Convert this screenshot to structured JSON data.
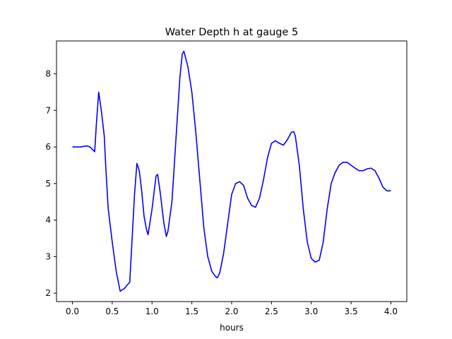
{
  "chart_data": {
    "type": "line",
    "title": "Water Depth h at gauge 5",
    "xlabel": "hours",
    "ylabel": "",
    "xlim": [
      -0.2,
      4.2
    ],
    "ylim": [
      1.77,
      8.9
    ],
    "xticks": [
      0.0,
      0.5,
      1.0,
      1.5,
      2.0,
      2.5,
      3.0,
      3.5,
      4.0
    ],
    "xtick_labels": [
      "0.0",
      "0.5",
      "1.0",
      "1.5",
      "2.0",
      "2.5",
      "3.0",
      "3.5",
      "4.0"
    ],
    "yticks": [
      2,
      3,
      4,
      5,
      6,
      7,
      8
    ],
    "ytick_labels": [
      "2",
      "3",
      "4",
      "5",
      "6",
      "7",
      "8"
    ],
    "grid": false,
    "series": [
      {
        "color": "#0000ff",
        "x": [
          0.0,
          0.1,
          0.18,
          0.22,
          0.28,
          0.3,
          0.33,
          0.36,
          0.4,
          0.42,
          0.45,
          0.5,
          0.55,
          0.6,
          0.63,
          0.65,
          0.68,
          0.72,
          0.75,
          0.78,
          0.81,
          0.84,
          0.87,
          0.9,
          0.93,
          0.95,
          1.0,
          1.05,
          1.07,
          1.1,
          1.15,
          1.18,
          1.2,
          1.25,
          1.3,
          1.35,
          1.38,
          1.4,
          1.42,
          1.45,
          1.5,
          1.55,
          1.6,
          1.65,
          1.7,
          1.75,
          1.8,
          1.82,
          1.85,
          1.9,
          1.95,
          2.0,
          2.05,
          2.1,
          2.15,
          2.2,
          2.25,
          2.3,
          2.35,
          2.4,
          2.45,
          2.5,
          2.55,
          2.6,
          2.65,
          2.7,
          2.75,
          2.78,
          2.8,
          2.85,
          2.9,
          2.95,
          3.0,
          3.05,
          3.1,
          3.15,
          3.2,
          3.25,
          3.3,
          3.35,
          3.4,
          3.45,
          3.5,
          3.55,
          3.6,
          3.65,
          3.7,
          3.75,
          3.8,
          3.85,
          3.9,
          3.95,
          4.0
        ],
        "y": [
          6.0,
          6.0,
          6.03,
          6.0,
          5.87,
          6.6,
          7.5,
          7.05,
          6.3,
          5.4,
          4.3,
          3.4,
          2.6,
          2.05,
          2.1,
          2.12,
          2.2,
          2.3,
          3.5,
          4.7,
          5.55,
          5.35,
          4.8,
          4.1,
          3.75,
          3.6,
          4.3,
          5.2,
          5.25,
          4.8,
          3.9,
          3.55,
          3.7,
          4.5,
          6.2,
          7.9,
          8.55,
          8.62,
          8.45,
          8.2,
          7.5,
          6.4,
          5.1,
          3.8,
          3.0,
          2.6,
          2.45,
          2.42,
          2.55,
          3.1,
          3.9,
          4.7,
          5.0,
          5.05,
          4.95,
          4.6,
          4.4,
          4.35,
          4.6,
          5.1,
          5.7,
          6.1,
          6.17,
          6.1,
          6.05,
          6.2,
          6.4,
          6.42,
          6.3,
          5.5,
          4.3,
          3.4,
          2.95,
          2.85,
          2.9,
          3.4,
          4.3,
          5.0,
          5.3,
          5.5,
          5.58,
          5.58,
          5.5,
          5.42,
          5.35,
          5.35,
          5.4,
          5.42,
          5.35,
          5.15,
          4.9,
          4.8,
          4.8
        ]
      }
    ]
  }
}
